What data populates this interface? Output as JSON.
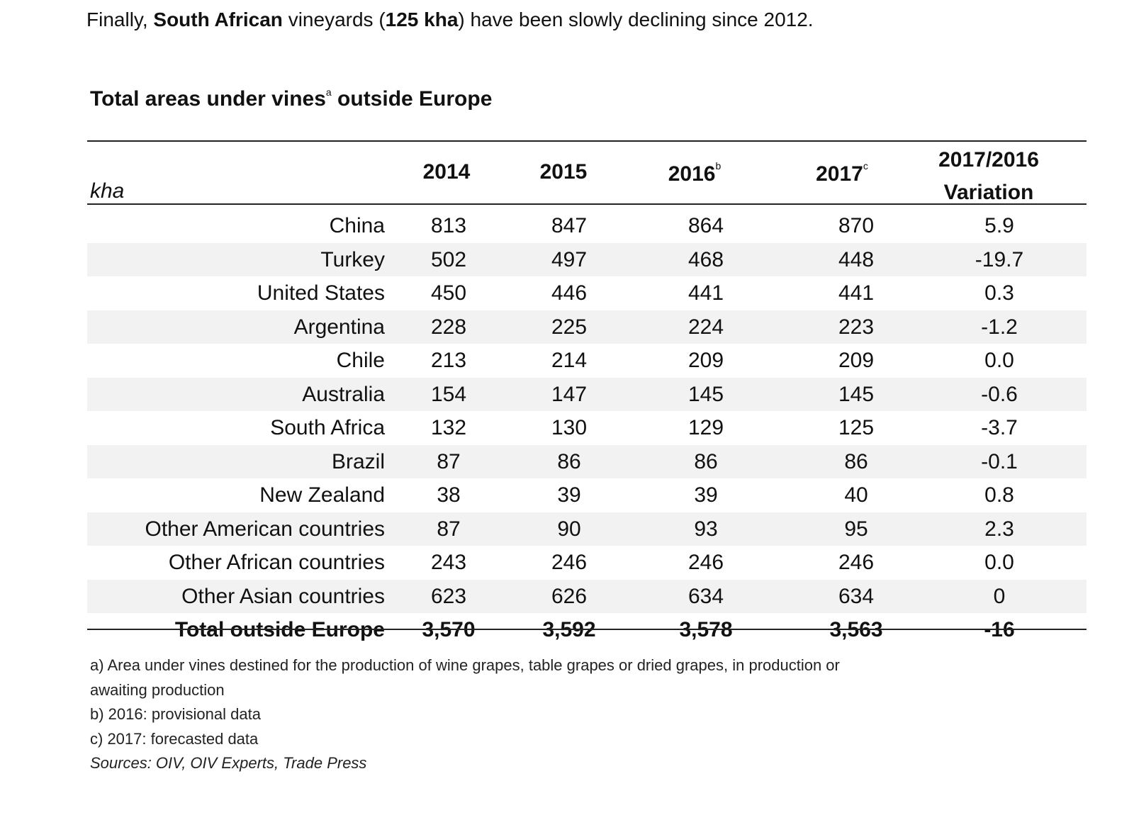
{
  "intro": {
    "prefix": "Finally, ",
    "bold1": "South African",
    "mid1": " vineyards (",
    "bold2": "125 kha",
    "suffix": ") have been slowly declining since 2012."
  },
  "table_title": {
    "text": "Total areas under vines",
    "sup": "a",
    "text2": " outside Europe"
  },
  "unit": "kha",
  "headers": [
    {
      "label": "2014",
      "sup": ""
    },
    {
      "label": "2015",
      "sup": ""
    },
    {
      "label": "2016",
      "sup": "b"
    },
    {
      "label": "2017",
      "sup": "c"
    },
    {
      "label": "2017/2016",
      "label2": "Variation"
    }
  ],
  "rows": [
    {
      "name": "China",
      "v": [
        "813",
        "847",
        "864",
        "870",
        "5.9"
      ]
    },
    {
      "name": "Turkey",
      "v": [
        "502",
        "497",
        "468",
        "448",
        "-19.7"
      ]
    },
    {
      "name": "United States",
      "v": [
        "450",
        "446",
        "441",
        "441",
        "0.3"
      ]
    },
    {
      "name": "Argentina",
      "v": [
        "228",
        "225",
        "224",
        "223",
        "-1.2"
      ]
    },
    {
      "name": "Chile",
      "v": [
        "213",
        "214",
        "209",
        "209",
        "0.0"
      ]
    },
    {
      "name": "Australia",
      "v": [
        "154",
        "147",
        "145",
        "145",
        "-0.6"
      ]
    },
    {
      "name": "South Africa",
      "v": [
        "132",
        "130",
        "129",
        "125",
        "-3.7"
      ]
    },
    {
      "name": "Brazil",
      "v": [
        "87",
        "86",
        "86",
        "86",
        "-0.1"
      ]
    },
    {
      "name": "New Zealand",
      "v": [
        "38",
        "39",
        "39",
        "40",
        "0.8"
      ]
    },
    {
      "name": "Other American countries",
      "v": [
        "87",
        "90",
        "93",
        "95",
        "2.3"
      ]
    },
    {
      "name": "Other African countries",
      "v": [
        "243",
        "246",
        "246",
        "246",
        "0.0"
      ]
    },
    {
      "name": "Other Asian countries",
      "v": [
        "623",
        "626",
        "634",
        "634",
        "0"
      ]
    }
  ],
  "total": {
    "name": "Total outside Europe",
    "v": [
      "3,570",
      "3,592",
      "3,578",
      "3,563",
      "-16"
    ]
  },
  "notes": {
    "a1": "a) Area under vines destined for the production of wine grapes, table grapes or dried grapes, in production or",
    "a2": "awaiting production",
    "b": "b) 2016: provisional data",
    "c": "c) 2017: forecasted data",
    "sources": "Sources: OIV, OIV Experts, Trade Press"
  }
}
